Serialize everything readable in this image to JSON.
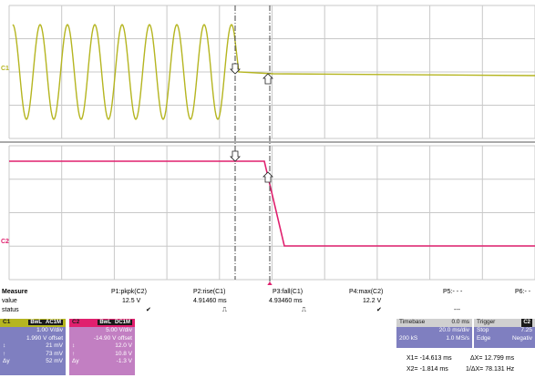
{
  "colors": {
    "c1": "#b5b520",
    "c2": "#e0206e",
    "c1_panel": "#7f7fc0",
    "c2_panel": "#c27fc2",
    "tb_panel": "#7f7fc0",
    "grid": "#c8c8c8"
  },
  "channels": {
    "c1_tag": "C1",
    "c2_tag": "C2"
  },
  "measure": {
    "title": "Measure",
    "row_labels": [
      "value",
      "status"
    ],
    "params": [
      {
        "name": "P1:pkpk(C2)",
        "value": "12.5 V",
        "status": "✔"
      },
      {
        "name": "P2:rise(C1)",
        "value": "4.91460 ms",
        "status": "⎍"
      },
      {
        "name": "P3:fall(C1)",
        "value": "4.93460 ms",
        "status": "⎍"
      },
      {
        "name": "P4:max(C2)",
        "value": "12.2 V",
        "status": "✔"
      },
      {
        "name": "P5:- - -",
        "value": "---",
        "status": ""
      },
      {
        "name": "P6:- -",
        "value": "",
        "status": ""
      }
    ]
  },
  "c1_box": {
    "tag": "C1",
    "mode": "BwL",
    "coupling": "AC1M",
    "scale": "1.00 V/div",
    "offset": "1.990 V offset",
    "rows": [
      {
        "sym": "↕",
        "val": "21 mV"
      },
      {
        "sym": "↑",
        "val": "73 mV"
      },
      {
        "sym": "Δy",
        "val": "52 mV"
      }
    ]
  },
  "c2_box": {
    "tag": "C2",
    "mode": "BwL",
    "coupling": "DC1M",
    "scale": "5.00 V/div",
    "offset": "-14.90 V offset",
    "rows": [
      {
        "sym": "↕",
        "val": "12.0 V"
      },
      {
        "sym": "↑",
        "val": "10.8 V"
      },
      {
        "sym": "Δy",
        "val": "-1.3 V"
      }
    ]
  },
  "timebase": {
    "title": "Timebase",
    "delay": "0.0 ms",
    "div": "20.0 ms/div",
    "samples": "200 kS",
    "rate": "1.0 MS/s"
  },
  "trigger": {
    "title": "Trigger",
    "tag": "C2",
    "mode": "Stop",
    "level": "7.25",
    "type": "Edge",
    "slope": "Negativ"
  },
  "cursors": {
    "x1": "X1= -14.613 ms",
    "dx": "ΔX= 12.799 ms",
    "x2": "X2= -1.814 ms",
    "inv": "1/ΔX= 78.131 Hz"
  }
}
